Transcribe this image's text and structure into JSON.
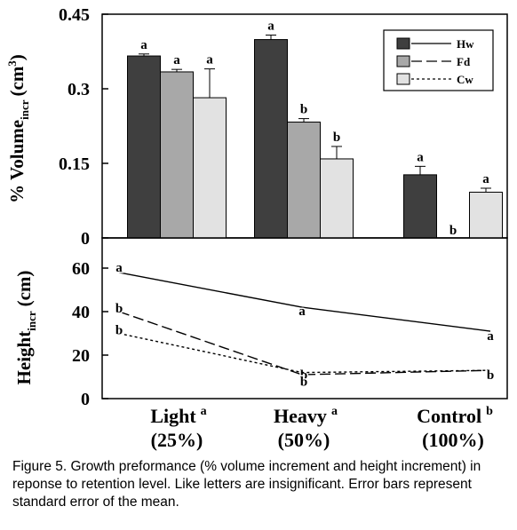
{
  "chart_data": [
    {
      "type": "bar",
      "panel": "top",
      "ylabel": "% Volume",
      "ylabel_sub": "incr",
      "ylabel_unit": "(cm",
      "ylabel_sup": "3",
      "ylabel_close": ")",
      "ylim": [
        0,
        0.45
      ],
      "yticks": [
        "0.45",
        "0.3",
        "0.15",
        "0"
      ],
      "ytick_values": [
        0.45,
        0.3,
        0.15,
        0
      ],
      "categories": [
        "Light",
        "Heavy",
        "Control"
      ],
      "series": [
        {
          "name": "Hw",
          "color": "#3f3f3f",
          "values": [
            0.366,
            0.399,
            0.127
          ],
          "errors": [
            0.004,
            0.009,
            0.017
          ],
          "letters": [
            "a",
            "a",
            "a"
          ]
        },
        {
          "name": "Fd",
          "color": "#a8a8a8",
          "values": [
            0.334,
            0.233,
            0.0
          ],
          "errors": [
            0.005,
            0.007,
            0.0
          ],
          "letters": [
            "a",
            "b",
            "b"
          ]
        },
        {
          "name": "Cw",
          "color": "#e2e2e2",
          "values": [
            0.282,
            0.159,
            0.092
          ],
          "errors": [
            0.058,
            0.025,
            0.008
          ],
          "letters": [
            "a",
            "b",
            "a"
          ]
        }
      ],
      "legend_position": "top-right",
      "grid": false
    },
    {
      "type": "line",
      "panel": "bottom",
      "ylabel": "Height",
      "ylabel_sub": "incr",
      "ylabel_unit": "(cm)",
      "ylim": [
        0,
        70
      ],
      "yticks": [
        "60",
        "40",
        "20",
        "0"
      ],
      "ytick_values": [
        60,
        40,
        20,
        0
      ],
      "categories": [
        "Light",
        "Heavy",
        "Control"
      ],
      "series": [
        {
          "name": "Hw",
          "dash": "solid",
          "values": [
            58,
            42,
            31
          ],
          "letters": [
            "a",
            "a",
            "a"
          ]
        },
        {
          "name": "Fd",
          "dash": "dashed",
          "values": [
            40,
            11,
            13
          ],
          "letters": [
            "b",
            "b",
            "b"
          ]
        },
        {
          "name": "Cw",
          "dash": "dotted",
          "values": [
            30,
            12,
            13
          ],
          "letters": [
            "b",
            "b",
            "b"
          ]
        }
      ],
      "grid": false
    }
  ],
  "xaxis": {
    "labels": [
      {
        "name": "Light",
        "sup": "a",
        "pct": "(25%)"
      },
      {
        "name": "Heavy",
        "sup": "a",
        "pct": "(50%)"
      },
      {
        "name": "Control",
        "sup": "b",
        "pct": "(100%)"
      }
    ]
  },
  "caption": "Figure 5. Growth preformance (% volume increment and height increment) in reponse to retention level. Like letters are insignificant. Error bars represent standard error of the mean."
}
